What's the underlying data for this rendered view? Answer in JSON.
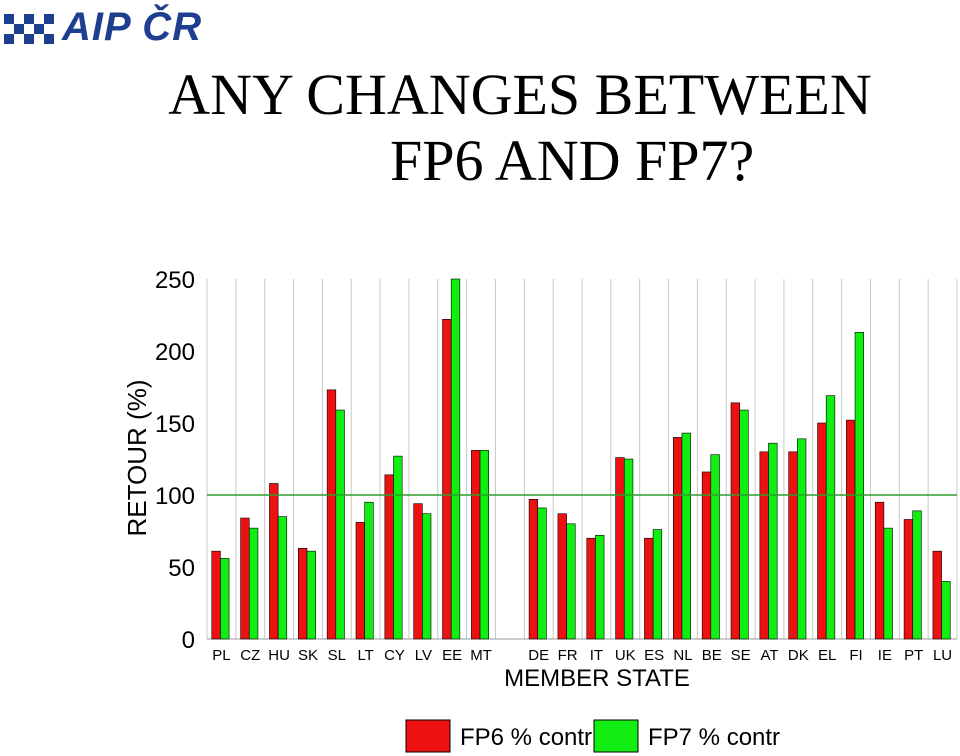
{
  "logo": {
    "text": "AIP ČR",
    "color": "#1e3f8f"
  },
  "title": {
    "line1": "ANY CHANGES  BETWEEN",
    "line2": "FP6 AND FP7?"
  },
  "chart_data": {
    "type": "bar",
    "ylabel": "RETOUR (%)",
    "xlabel": "MEMBER STATE",
    "ylim": [
      0,
      250
    ],
    "yticks": [
      0,
      50,
      100,
      150,
      200,
      250
    ],
    "reference_line": 100,
    "grid": "vertical",
    "legend_position": "bottom",
    "categories": [
      "PL",
      "CZ",
      "HU",
      "SK",
      "SL",
      "LT",
      "CY",
      "LV",
      "EE",
      "MT",
      "",
      "DE",
      "FR",
      "IT",
      "UK",
      "ES",
      "NL",
      "BE",
      "SE",
      "AT",
      "DK",
      "EL",
      "FI",
      "IE",
      "PT",
      "LU"
    ],
    "series": [
      {
        "name": "FP6 % contr",
        "color": "#ee1111",
        "values": [
          61,
          84,
          108,
          63,
          173,
          81,
          114,
          94,
          222,
          131,
          null,
          97,
          87,
          70,
          126,
          70,
          140,
          116,
          164,
          130,
          130,
          150,
          152,
          95,
          83,
          61
        ]
      },
      {
        "name": "FP7 % contr",
        "color": "#11ee11",
        "values": [
          56,
          77,
          85,
          61,
          159,
          95,
          127,
          87,
          250,
          131,
          null,
          91,
          80,
          72,
          125,
          76,
          143,
          128,
          159,
          136,
          139,
          169,
          213,
          77,
          89,
          40
        ]
      }
    ]
  }
}
